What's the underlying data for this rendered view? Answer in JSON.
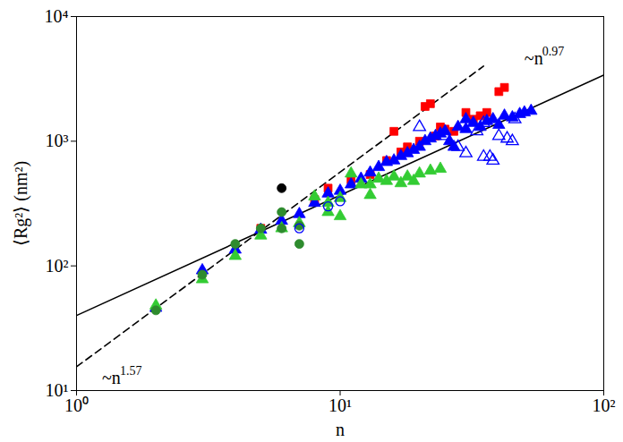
{
  "chart_data": {
    "type": "scatter",
    "x_label": "n",
    "y_label": "⟨Rg²⟩ (nm²)",
    "log": true,
    "grid": false,
    "xlim": [
      1,
      100
    ],
    "ylim": [
      10,
      10000
    ],
    "xticks": [
      {
        "value": 1,
        "label": "10⁰"
      },
      {
        "value": 10,
        "label": "10¹"
      },
      {
        "value": 100,
        "label": "10²"
      }
    ],
    "yticks": [
      {
        "value": 10,
        "label": "10¹"
      },
      {
        "value": 100,
        "label": "10²"
      },
      {
        "value": 1000,
        "label": "10³"
      },
      {
        "value": 10000,
        "label": "10⁴"
      }
    ],
    "annotations": [
      {
        "text": "~n",
        "superscript": "0.97",
        "x": 50,
        "y": 4600
      },
      {
        "text": "~n",
        "superscript": "1.57",
        "x": 1.25,
        "y": 12.5
      }
    ],
    "series": [
      {
        "type": "line",
        "line_style": "solid",
        "color": "#000000",
        "x": [
          1,
          100
        ],
        "values": [
          40,
          3400
        ]
      },
      {
        "type": "line",
        "line_style": "dashed",
        "color": "#000000",
        "x": [
          1,
          35
        ],
        "values": [
          15.5,
          4000
        ]
      },
      {
        "type": "scatter",
        "marker": "square",
        "color": "#ff0000",
        "x": [
          5,
          8,
          9,
          11,
          13,
          15,
          16,
          17,
          18,
          20,
          21,
          22,
          23,
          24,
          25,
          27,
          30,
          32,
          34,
          36,
          40,
          42
        ],
        "values": [
          200,
          340,
          420,
          490,
          540,
          700,
          1200,
          820,
          900,
          1000,
          1900,
          2000,
          1100,
          1300,
          1250,
          1200,
          1700,
          1500,
          1600,
          1700,
          2500,
          2700
        ]
      },
      {
        "type": "scatter",
        "marker": "triangle",
        "color": "#0000ff",
        "x": [
          2,
          3,
          4,
          5,
          6,
          7,
          8,
          9,
          10,
          11,
          12,
          13,
          14,
          15,
          16,
          17,
          18,
          19,
          20,
          21,
          22,
          23,
          24,
          25,
          26,
          27,
          28,
          30,
          30,
          32,
          34,
          36,
          38,
          40,
          42,
          45,
          48,
          50,
          53
        ],
        "values": [
          46,
          92,
          135,
          195,
          230,
          260,
          320,
          380,
          400,
          450,
          500,
          560,
          620,
          680,
          700,
          760,
          800,
          850,
          900,
          1000,
          1050,
          1100,
          1150,
          1200,
          1000,
          900,
          1300,
          1250,
          1500,
          1400,
          1300,
          1450,
          1500,
          1350,
          1600,
          1550,
          1650,
          1700,
          1750
        ]
      },
      {
        "type": "scatter",
        "marker": "triangle-open",
        "color": "#0000ff",
        "x": [
          20,
          25,
          28,
          30,
          33,
          35,
          35,
          37,
          38,
          40,
          43,
          45,
          46
        ],
        "values": [
          1300,
          1100,
          900,
          800,
          1200,
          750,
          1400,
          750,
          700,
          1100,
          1050,
          1000,
          1500
        ]
      },
      {
        "type": "scatter",
        "marker": "triangle",
        "color": "#33cc33",
        "x": [
          2,
          3,
          4,
          5,
          6,
          7,
          8,
          9,
          9,
          10,
          10,
          11,
          12,
          13,
          13,
          14,
          15,
          16,
          17,
          18,
          19,
          20,
          22,
          24
        ],
        "values": [
          48,
          78,
          120,
          175,
          200,
          220,
          360,
          320,
          270,
          350,
          250,
          550,
          450,
          450,
          370,
          500,
          480,
          520,
          460,
          520,
          480,
          550,
          580,
          600
        ]
      },
      {
        "type": "scatter",
        "marker": "circle",
        "color": "#2e8b2e",
        "x": [
          2,
          3,
          4,
          5,
          6,
          6,
          7,
          7
        ],
        "values": [
          44,
          85,
          150,
          200,
          270,
          200,
          210,
          150
        ]
      },
      {
        "type": "scatter",
        "marker": "circle",
        "color": "#000000",
        "x": [
          6
        ],
        "values": [
          420
        ]
      },
      {
        "type": "scatter",
        "marker": "circle-open",
        "color": "#0000ff",
        "x": [
          7,
          9,
          10
        ],
        "values": [
          200,
          300,
          330
        ]
      }
    ]
  }
}
